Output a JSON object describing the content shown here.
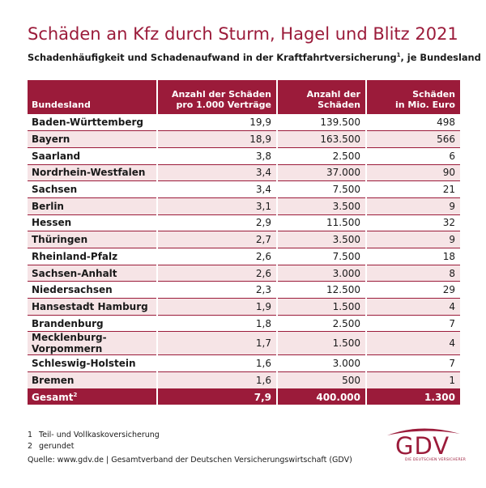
{
  "title": "Schäden an Kfz durch Sturm, Hagel und Blitz 2021",
  "subtitle": {
    "text": "Schadenhäufigkeit und Schadenaufwand in der Kraftfahrtversicherung",
    "sup": "1",
    "suffix": ", je Bundesland"
  },
  "table": {
    "headers": {
      "c0": "Bundesland",
      "c1_line1": "Anzahl der Schäden",
      "c1_line2": "pro 1.000 Verträge",
      "c2_line1": "Anzahl der",
      "c2_line2": "Schäden",
      "c3_line1": "Schäden",
      "c3_line2": "in Mio. Euro"
    },
    "rows": [
      [
        "Baden-Württemberg",
        "19,9",
        "139.500",
        "498"
      ],
      [
        "Bayern",
        "18,9",
        "163.500",
        "566"
      ],
      [
        "Saarland",
        "3,8",
        "2.500",
        "6"
      ],
      [
        "Nordrhein-Westfalen",
        "3,4",
        "37.000",
        "90"
      ],
      [
        "Sachsen",
        "3,4",
        "7.500",
        "21"
      ],
      [
        "Berlin",
        "3,1",
        "3.500",
        "9"
      ],
      [
        "Hessen",
        "2,9",
        "11.500",
        "32"
      ],
      [
        "Thüringen",
        "2,7",
        "3.500",
        "9"
      ],
      [
        "Rheinland-Pfalz",
        "2,6",
        "7.500",
        "18"
      ],
      [
        "Sachsen-Anhalt",
        "2,6",
        "3.000",
        "8"
      ],
      [
        "Niedersachsen",
        "2,3",
        "12.500",
        "29"
      ],
      [
        "Hansestadt Hamburg",
        "1,9",
        "1.500",
        "4"
      ],
      [
        "Brandenburg",
        "1,8",
        "2.500",
        "7"
      ],
      [
        "Mecklenburg-Vorpommern",
        "1,7",
        "1.500",
        "4"
      ],
      [
        "Schleswig-Holstein",
        "1,6",
        "3.000",
        "7"
      ],
      [
        "Bremen",
        "1,6",
        "500",
        "1"
      ]
    ],
    "total": {
      "label": "Gesamt",
      "sup": "2",
      "c1": "7,9",
      "c2": "400.000",
      "c3": "1.300"
    }
  },
  "footnotes": [
    {
      "num": "1",
      "text": "Teil- und Vollkaskoversicherung"
    },
    {
      "num": "2",
      "text": "gerundet"
    }
  ],
  "source": "Quelle: www.gdv.de | Gesamtverband der Deutschen Versicherungswirtschaft (GDV)",
  "logo": {
    "text": "GDV",
    "subtext": "DIE DEUTSCHEN VERSICHERER"
  },
  "colors": {
    "accent": "#9b1b3a",
    "row_alt": "#f6e4e6"
  }
}
